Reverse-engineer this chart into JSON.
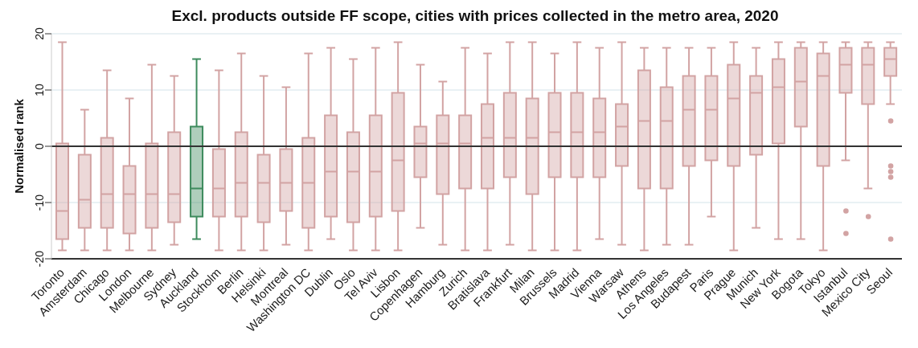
{
  "chart_data": {
    "type": "box",
    "title": "Excl. products outside FF scope, cities with prices collected in the metro area, 2020",
    "ylabel": "Normalised rank",
    "categories": [
      "Toronto",
      "Amsterdam",
      "Chicago",
      "London",
      "Melbourne",
      "Sydney",
      "Auckland",
      "Stockholm",
      "Berlin",
      "Helsinki",
      "Montreal",
      "Washington DC",
      "Dublin",
      "Oslo",
      "Tel Aviv",
      "Lisbon",
      "Copenhagen",
      "Hamburg",
      "Zurich",
      "Bratislava",
      "Frankfurt",
      "Milan",
      "Brussels",
      "Madrid",
      "Vienna",
      "Warsaw",
      "Athens",
      "Los Angeles",
      "Budapest",
      "Paris",
      "Prague",
      "Munich",
      "New York",
      "Bogota",
      "Tokyo",
      "Istanbul",
      "Mexico City",
      "Seoul"
    ],
    "boxes": [
      {
        "low": -18.5,
        "q1": -16.5,
        "median": -11.5,
        "q3": 0.5,
        "high": 18.5
      },
      {
        "low": -18.5,
        "q1": -14.5,
        "median": -9.5,
        "q3": -1.5,
        "high": 6.5
      },
      {
        "low": -18.5,
        "q1": -14.5,
        "median": -8.5,
        "q3": 1.5,
        "high": 13.5
      },
      {
        "low": -18.5,
        "q1": -15.5,
        "median": -8.5,
        "q3": -3.5,
        "high": 8.5
      },
      {
        "low": -18.5,
        "q1": -14.5,
        "median": -8.5,
        "q3": 0.5,
        "high": 14.5
      },
      {
        "low": -17.5,
        "q1": -13.5,
        "median": -8.5,
        "q3": 2.5,
        "high": 12.5
      },
      {
        "low": -16.5,
        "q1": -12.5,
        "median": -7.5,
        "q3": 3.5,
        "high": 15.5
      },
      {
        "low": -18.5,
        "q1": -12.5,
        "median": -7.5,
        "q3": -0.5,
        "high": 13.5
      },
      {
        "low": -18.5,
        "q1": -12.5,
        "median": -6.5,
        "q3": 2.5,
        "high": 16.5
      },
      {
        "low": -18.5,
        "q1": -13.5,
        "median": -6.5,
        "q3": -1.5,
        "high": 12.5
      },
      {
        "low": -17.5,
        "q1": -11.5,
        "median": -6.5,
        "q3": -0.5,
        "high": 10.5
      },
      {
        "low": -18.5,
        "q1": -14.5,
        "median": -6.5,
        "q3": 1.5,
        "high": 16.5
      },
      {
        "low": -16.5,
        "q1": -12.5,
        "median": -4.5,
        "q3": 5.5,
        "high": 17.5
      },
      {
        "low": -18.5,
        "q1": -13.5,
        "median": -4.5,
        "q3": 2.5,
        "high": 15.5
      },
      {
        "low": -18.5,
        "q1": -12.5,
        "median": -4.5,
        "q3": 5.5,
        "high": 17.5
      },
      {
        "low": -18.5,
        "q1": -11.5,
        "median": -2.5,
        "q3": 9.5,
        "high": 18.5
      },
      {
        "low": -14.5,
        "q1": -5.5,
        "median": 0.5,
        "q3": 3.5,
        "high": 14.5
      },
      {
        "low": -17.5,
        "q1": -8.5,
        "median": 0.5,
        "q3": 5.5,
        "high": 11.5
      },
      {
        "low": -18.5,
        "q1": -7.5,
        "median": 0.5,
        "q3": 5.5,
        "high": 17.5
      },
      {
        "low": -18.5,
        "q1": -7.5,
        "median": 1.5,
        "q3": 7.5,
        "high": 16.5
      },
      {
        "low": -17.5,
        "q1": -5.5,
        "median": 1.5,
        "q3": 9.5,
        "high": 18.5
      },
      {
        "low": -18.5,
        "q1": -8.5,
        "median": 1.5,
        "q3": 8.5,
        "high": 18.5
      },
      {
        "low": -18.5,
        "q1": -5.5,
        "median": 2.5,
        "q3": 9.5,
        "high": 16.5
      },
      {
        "low": -18.5,
        "q1": -5.5,
        "median": 2.5,
        "q3": 9.5,
        "high": 18.5
      },
      {
        "low": -16.5,
        "q1": -5.5,
        "median": 2.5,
        "q3": 8.5,
        "high": 17.5
      },
      {
        "low": -17.5,
        "q1": -3.5,
        "median": 3.5,
        "q3": 7.5,
        "high": 18.5
      },
      {
        "low": -18.5,
        "q1": -7.5,
        "median": 4.5,
        "q3": 13.5,
        "high": 17.5
      },
      {
        "low": -17.5,
        "q1": -7.5,
        "median": 4.5,
        "q3": 10.5,
        "high": 17.5
      },
      {
        "low": -17.5,
        "q1": -3.5,
        "median": 6.5,
        "q3": 12.5,
        "high": 17.5
      },
      {
        "low": -12.5,
        "q1": -2.5,
        "median": 6.5,
        "q3": 12.5,
        "high": 17.5
      },
      {
        "low": -18.5,
        "q1": -3.5,
        "median": 8.5,
        "q3": 14.5,
        "high": 18.5
      },
      {
        "low": -14.5,
        "q1": -1.5,
        "median": 9.5,
        "q3": 12.5,
        "high": 17.5
      },
      {
        "low": -16.5,
        "q1": 0.5,
        "median": 10.5,
        "q3": 15.5,
        "high": 18.5
      },
      {
        "low": -16.5,
        "q1": 3.5,
        "median": 11.5,
        "q3": 17.5,
        "high": 18.5
      },
      {
        "low": -18.5,
        "q1": -3.5,
        "median": 12.5,
        "q3": 16.5,
        "high": 18.5
      },
      {
        "low": -2.5,
        "q1": 9.5,
        "median": 14.5,
        "q3": 17.5,
        "high": 18.5,
        "outliers": [
          -11.5,
          -15.5
        ]
      },
      {
        "low": -7.5,
        "q1": 7.5,
        "median": 14.5,
        "q3": 17.5,
        "high": 18.5,
        "outliers": [
          -12.5
        ]
      },
      {
        "low": 7.5,
        "q1": 12.5,
        "median": 15.5,
        "q3": 17.5,
        "high": 18.5,
        "outliers": [
          4.5,
          -3.5,
          -4.5,
          -5.5,
          -16.5
        ]
      }
    ],
    "colors": [
      "#d2a3a3",
      "#d2a3a3",
      "#d2a3a3",
      "#d2a3a3",
      "#d2a3a3",
      "#d2a3a3",
      "#3d8b5d",
      "#d2a3a3",
      "#d2a3a3",
      "#d2a3a3",
      "#d2a3a3",
      "#d2a3a3",
      "#d2a3a3",
      "#d2a3a3",
      "#d2a3a3",
      "#d2a3a3",
      "#d2a3a3",
      "#d2a3a3",
      "#d2a3a3",
      "#d2a3a3",
      "#d2a3a3",
      "#d2a3a3",
      "#d2a3a3",
      "#d2a3a3",
      "#d2a3a3",
      "#d2a3a3",
      "#d2a3a3",
      "#d2a3a3",
      "#d2a3a3",
      "#d2a3a3",
      "#d2a3a3",
      "#d2a3a3",
      "#d2a3a3",
      "#d2a3a3",
      "#d2a3a3",
      "#d2a3a3",
      "#d2a3a3",
      "#d2a3a3"
    ],
    "ylim": [
      -20,
      20
    ],
    "yticks": [
      -20,
      -10,
      0,
      10,
      20
    ],
    "grid": "y",
    "ref_lines": [
      {
        "axis": "y",
        "value": 0,
        "color": "#333333"
      }
    ]
  }
}
